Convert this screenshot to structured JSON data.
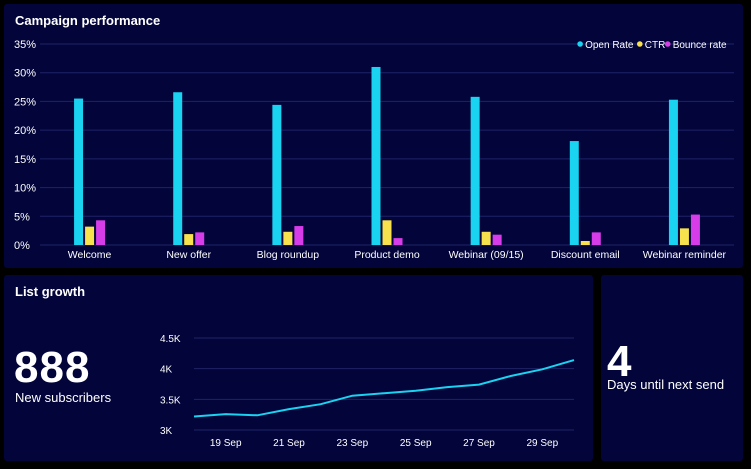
{
  "campaign": {
    "title": "Campaign performance",
    "chart_data": {
      "type": "bar",
      "categories": [
        "Welcome",
        "New offer",
        "Blog roundup",
        "Product demo",
        "Webinar (09/15)",
        "Discount email",
        "Webinar reminder"
      ],
      "series": [
        {
          "name": "Open Rate",
          "color": "#19d3f0",
          "values": [
            25.5,
            26.6,
            24.4,
            31.0,
            25.8,
            18.1,
            25.3
          ]
        },
        {
          "name": "CTR",
          "color": "#f7e14d",
          "values": [
            3.2,
            1.9,
            2.3,
            4.3,
            2.3,
            0.7,
            2.9
          ]
        },
        {
          "name": "Bounce rate",
          "color": "#d63ce8",
          "values": [
            4.3,
            2.2,
            3.3,
            1.2,
            1.8,
            2.2,
            5.3
          ]
        }
      ],
      "yticks": [
        "0%",
        "5%",
        "10%",
        "15%",
        "20%",
        "25%",
        "30%",
        "35%"
      ],
      "ylim": [
        0,
        35
      ],
      "grid": true,
      "legend_position": "top-right"
    }
  },
  "growth": {
    "title": "List growth",
    "value": "888",
    "label": "New subscribers",
    "chart_data": {
      "type": "line",
      "x": [
        "18 Sep",
        "19 Sep",
        "20 Sep",
        "21 Sep",
        "22 Sep",
        "23 Sep",
        "24 Sep",
        "25 Sep",
        "26 Sep",
        "27 Sep",
        "28 Sep",
        "29 Sep",
        "30 Sep"
      ],
      "xticks": [
        "19 Sep",
        "21 Sep",
        "23 Sep",
        "25 Sep",
        "27 Sep",
        "29 Sep"
      ],
      "series": [
        {
          "color": "#19d3f0",
          "values": [
            3220,
            3260,
            3240,
            3340,
            3420,
            3560,
            3600,
            3640,
            3700,
            3740,
            3880,
            3990,
            4140
          ]
        }
      ],
      "yticks": [
        "3K",
        "3.5K",
        "4K",
        "4.5K"
      ],
      "ylim": [
        3000,
        4500
      ],
      "grid": true
    }
  },
  "days": {
    "value": "4",
    "label": "Days until next send"
  }
}
